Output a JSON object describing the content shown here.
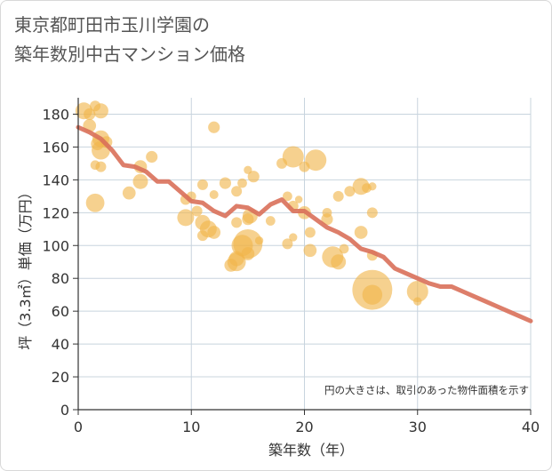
{
  "chart_data": {
    "type": "scatter",
    "title_lines": [
      "東京都町田市玉川学園の",
      "築年数別中古マンション価格"
    ],
    "xlabel": "築年数（年）",
    "ylabel": "坪（3.3㎡）単価（万円）",
    "xlim": [
      0,
      40
    ],
    "ylim": [
      0,
      190
    ],
    "xticks": [
      0,
      10,
      20,
      30,
      40
    ],
    "yticks": [
      0,
      20,
      40,
      60,
      80,
      100,
      120,
      140,
      160,
      180
    ],
    "grid": true,
    "note": "円の大きさは、取引のあった物件面積を示す",
    "colors": {
      "bubble": "#f0b54a",
      "line": "#d9705a",
      "grid": "#c8d4de"
    },
    "bubbles": [
      {
        "x": 0.5,
        "y": 182,
        "s": 2.5
      },
      {
        "x": 1.0,
        "y": 180,
        "s": 1.2
      },
      {
        "x": 1.5,
        "y": 185,
        "s": 1.0
      },
      {
        "x": 2.0,
        "y": 182,
        "s": 2.0
      },
      {
        "x": 1.0,
        "y": 173,
        "s": 1.5
      },
      {
        "x": 2.0,
        "y": 165,
        "s": 2.5
      },
      {
        "x": 1.7,
        "y": 162,
        "s": 1.5
      },
      {
        "x": 2.0,
        "y": 158,
        "s": 3.0
      },
      {
        "x": 2.5,
        "y": 163,
        "s": 1.2
      },
      {
        "x": 1.5,
        "y": 149,
        "s": 0.8
      },
      {
        "x": 2.0,
        "y": 148,
        "s": 1.0
      },
      {
        "x": 1.5,
        "y": 126,
        "s": 3.0
      },
      {
        "x": 4.5,
        "y": 132,
        "s": 1.5
      },
      {
        "x": 5.5,
        "y": 148,
        "s": 1.5
      },
      {
        "x": 5.5,
        "y": 139,
        "s": 2.0
      },
      {
        "x": 6.5,
        "y": 154,
        "s": 1.2
      },
      {
        "x": 9.5,
        "y": 128,
        "s": 1.0
      },
      {
        "x": 9.5,
        "y": 117,
        "s": 2.5
      },
      {
        "x": 10,
        "y": 130,
        "s": 0.8
      },
      {
        "x": 10.5,
        "y": 121,
        "s": 1.0
      },
      {
        "x": 11,
        "y": 114,
        "s": 2.0
      },
      {
        "x": 11,
        "y": 106,
        "s": 1.0
      },
      {
        "x": 11.5,
        "y": 110,
        "s": 2.5
      },
      {
        "x": 11,
        "y": 137,
        "s": 1.0
      },
      {
        "x": 12,
        "y": 131,
        "s": 0.7
      },
      {
        "x": 12,
        "y": 172,
        "s": 1.2
      },
      {
        "x": 12,
        "y": 108,
        "s": 1.5
      },
      {
        "x": 13,
        "y": 138,
        "s": 1.2
      },
      {
        "x": 14,
        "y": 133,
        "s": 1.0
      },
      {
        "x": 14.5,
        "y": 138,
        "s": 0.8
      },
      {
        "x": 15,
        "y": 146,
        "s": 0.6
      },
      {
        "x": 15.5,
        "y": 142,
        "s": 1.2
      },
      {
        "x": 15,
        "y": 116,
        "s": 1.2
      },
      {
        "x": 14,
        "y": 114,
        "s": 1.0
      },
      {
        "x": 14.5,
        "y": 100,
        "s": 4.0
      },
      {
        "x": 15,
        "y": 101,
        "s": 7.5
      },
      {
        "x": 15.2,
        "y": 118,
        "s": 2.0
      },
      {
        "x": 14,
        "y": 92,
        "s": 2.0
      },
      {
        "x": 13.5,
        "y": 88,
        "s": 1.5
      },
      {
        "x": 14,
        "y": 90,
        "s": 3.0
      },
      {
        "x": 15,
        "y": 95,
        "s": 1.5
      },
      {
        "x": 16,
        "y": 103,
        "s": 0.6
      },
      {
        "x": 17,
        "y": 115,
        "s": 0.8
      },
      {
        "x": 18,
        "y": 150,
        "s": 1.0
      },
      {
        "x": 19,
        "y": 154,
        "s": 4.0
      },
      {
        "x": 18.5,
        "y": 130,
        "s": 0.8
      },
      {
        "x": 19,
        "y": 124,
        "s": 1.0
      },
      {
        "x": 19,
        "y": 105,
        "s": 0.6
      },
      {
        "x": 18.5,
        "y": 101,
        "s": 1.0
      },
      {
        "x": 19.5,
        "y": 128,
        "s": 0.5
      },
      {
        "x": 20,
        "y": 120,
        "s": 1.5
      },
      {
        "x": 20,
        "y": 148,
        "s": 1.0
      },
      {
        "x": 21,
        "y": 152,
        "s": 4.0
      },
      {
        "x": 20.5,
        "y": 108,
        "s": 1.0
      },
      {
        "x": 20.5,
        "y": 97,
        "s": 1.5
      },
      {
        "x": 22,
        "y": 120,
        "s": 0.8
      },
      {
        "x": 22,
        "y": 116,
        "s": 1.2
      },
      {
        "x": 22.5,
        "y": 93,
        "s": 4.0
      },
      {
        "x": 23,
        "y": 90,
        "s": 2.0
      },
      {
        "x": 23.5,
        "y": 98,
        "s": 0.8
      },
      {
        "x": 23,
        "y": 130,
        "s": 1.0
      },
      {
        "x": 24,
        "y": 133,
        "s": 1.0
      },
      {
        "x": 25,
        "y": 136,
        "s": 2.5
      },
      {
        "x": 25.5,
        "y": 135,
        "s": 0.8
      },
      {
        "x": 26,
        "y": 136,
        "s": 0.6
      },
      {
        "x": 25,
        "y": 108,
        "s": 1.5
      },
      {
        "x": 26,
        "y": 120,
        "s": 1.0
      },
      {
        "x": 26,
        "y": 94,
        "s": 1.0
      },
      {
        "x": 26,
        "y": 73,
        "s": 14.0
      },
      {
        "x": 26,
        "y": 70,
        "s": 3.5
      },
      {
        "x": 30,
        "y": 72,
        "s": 4.0
      },
      {
        "x": 30,
        "y": 66,
        "s": 0.6
      }
    ],
    "trend": {
      "x": [
        0,
        1,
        2,
        3,
        4,
        5,
        6,
        7,
        8,
        9,
        10,
        11,
        12,
        13,
        14,
        15,
        16,
        17,
        18,
        19,
        20,
        21,
        22,
        23,
        24,
        25,
        26,
        27,
        28,
        29,
        30,
        31,
        32,
        33,
        34,
        35,
        36,
        37,
        38,
        39,
        40
      ],
      "y": [
        172,
        169,
        165,
        158,
        149,
        148,
        145,
        139,
        139,
        133,
        127,
        126,
        121,
        118,
        124,
        123,
        119,
        125,
        128,
        121,
        121,
        116,
        111,
        108,
        104,
        98,
        96,
        93,
        86,
        83,
        80,
        77,
        75,
        75,
        72,
        69,
        66,
        63,
        60,
        57,
        54
      ]
    }
  }
}
